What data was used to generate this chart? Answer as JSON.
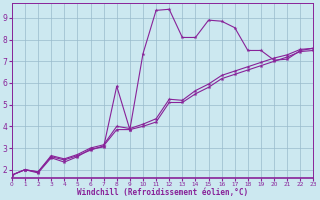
{
  "xlabel": "Windchill (Refroidissement éolien,°C)",
  "bg_color": "#cce8f0",
  "grid_color": "#99bbcc",
  "line_color": "#882299",
  "spine_color": "#882299",
  "xlim": [
    0,
    23
  ],
  "ylim": [
    1.6,
    9.7
  ],
  "xticks": [
    0,
    1,
    2,
    3,
    4,
    5,
    6,
    7,
    8,
    9,
    10,
    11,
    12,
    13,
    14,
    15,
    16,
    17,
    18,
    19,
    20,
    21,
    22,
    23
  ],
  "yticks": [
    2,
    3,
    4,
    5,
    6,
    7,
    8,
    9
  ],
  "line1_x": [
    0,
    1,
    2,
    3,
    4,
    5,
    6,
    7,
    8,
    9,
    10,
    11,
    12,
    13,
    14,
    15,
    16,
    17,
    18,
    19,
    20,
    21,
    22,
    23
  ],
  "line1_y": [
    1.75,
    2.0,
    1.9,
    2.6,
    2.45,
    2.65,
    2.9,
    3.1,
    3.85,
    3.85,
    4.0,
    4.2,
    5.1,
    5.1,
    5.5,
    5.8,
    6.2,
    6.4,
    6.6,
    6.8,
    7.0,
    7.2,
    7.45,
    7.5
  ],
  "line2_x": [
    0,
    1,
    2,
    3,
    4,
    5,
    6,
    7,
    8,
    9,
    10,
    11,
    12,
    13,
    14,
    15,
    16,
    17,
    18,
    19,
    20,
    21,
    22,
    23
  ],
  "line2_y": [
    1.75,
    2.0,
    1.9,
    2.65,
    2.5,
    2.7,
    3.0,
    3.15,
    4.0,
    3.9,
    4.1,
    4.35,
    5.25,
    5.2,
    5.65,
    5.95,
    6.35,
    6.55,
    6.75,
    6.95,
    7.15,
    7.3,
    7.55,
    7.6
  ],
  "line3_x": [
    0,
    1,
    2,
    3,
    4,
    5,
    6,
    7,
    8,
    9,
    10,
    11,
    12,
    13,
    14,
    15,
    16,
    17,
    18,
    19,
    20,
    21,
    22,
    23
  ],
  "line3_y": [
    1.75,
    2.0,
    1.85,
    2.55,
    2.35,
    2.6,
    2.95,
    3.05,
    5.85,
    3.85,
    7.35,
    9.35,
    9.4,
    8.1,
    8.1,
    8.9,
    8.85,
    8.55,
    7.5,
    7.5,
    7.05,
    7.1,
    7.5,
    7.6
  ],
  "markersize": 3,
  "linewidth": 0.8,
  "xlabel_fontsize": 5.5,
  "xtick_fontsize": 4.2,
  "ytick_fontsize": 5.5
}
